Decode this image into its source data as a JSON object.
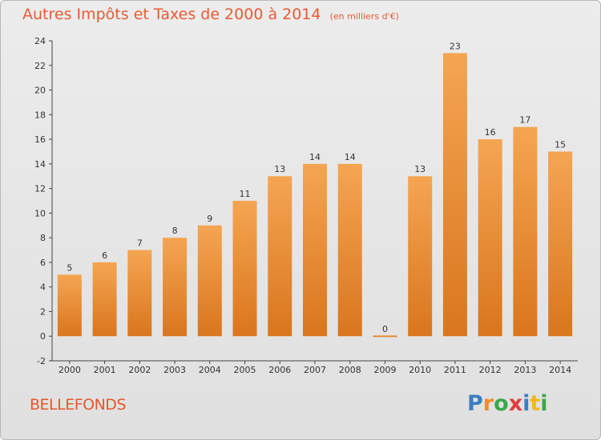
{
  "chart_data": {
    "type": "bar",
    "title": "Autres Impôts et Taxes de 2000 à 2014",
    "subtitle": "(en milliers d'€)",
    "categories": [
      "2000",
      "2001",
      "2002",
      "2003",
      "2004",
      "2005",
      "2006",
      "2007",
      "2008",
      "2009",
      "2010",
      "2011",
      "2012",
      "2013",
      "2014"
    ],
    "values": [
      5,
      6,
      7,
      8,
      9,
      11,
      13,
      14,
      14,
      0,
      13,
      23,
      16,
      17,
      15
    ],
    "ylim": [
      -2,
      24
    ],
    "yticks": [
      -2,
      0,
      2,
      4,
      6,
      8,
      10,
      12,
      14,
      16,
      18,
      20,
      22,
      24
    ],
    "grid": false,
    "bar_color": "#f29a42"
  },
  "footer": {
    "commune": "BELLEFONDS",
    "logo_letters": [
      {
        "ch": "P",
        "color": "#3a7fc4"
      },
      {
        "ch": "r",
        "color": "#f28c28"
      },
      {
        "ch": "o",
        "color": "#3ca84a"
      },
      {
        "ch": "x",
        "color": "#e23b3b"
      },
      {
        "ch": "i",
        "color": "#3a7fc4"
      },
      {
        "ch": "t",
        "color": "#f2b818"
      },
      {
        "ch": "i",
        "color": "#3ca84a"
      }
    ]
  }
}
